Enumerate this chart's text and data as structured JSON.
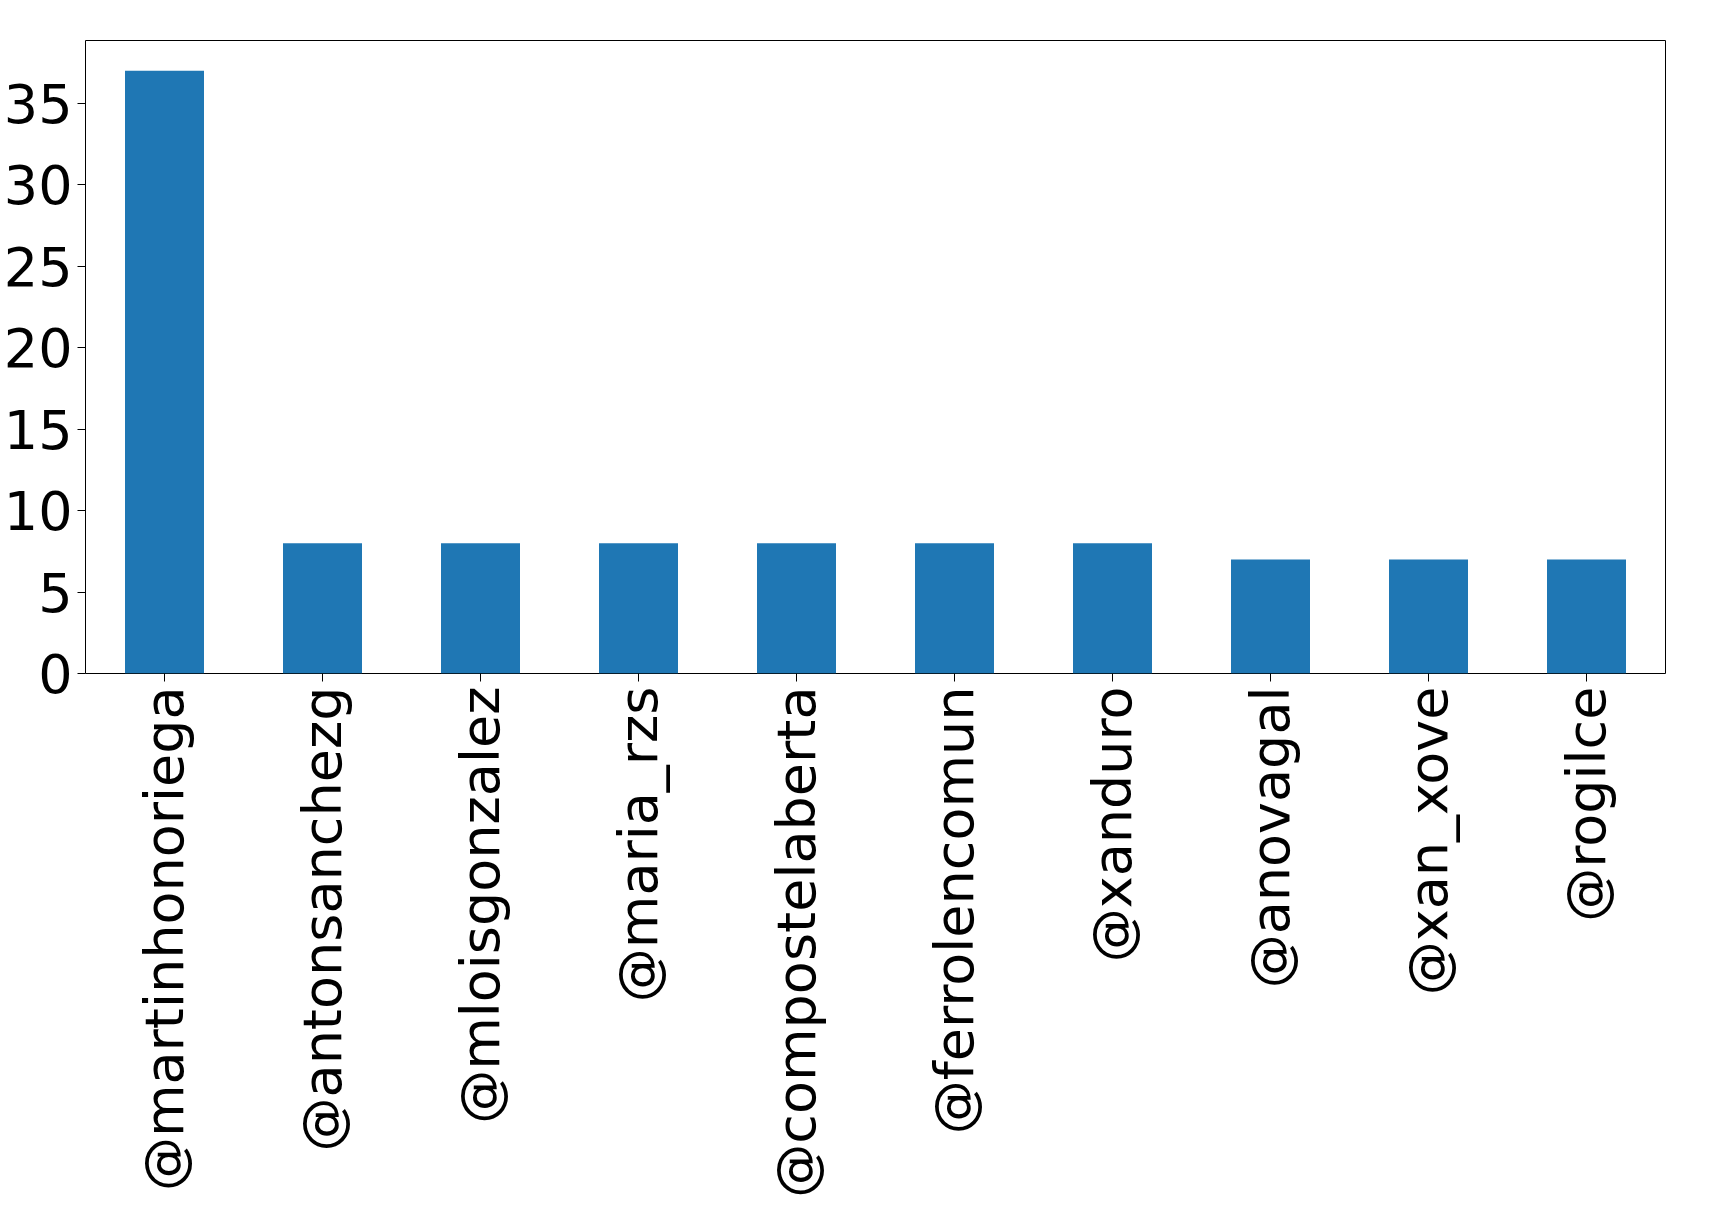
{
  "chart_data": {
    "type": "bar",
    "categories": [
      "@martinhonoriega",
      "@antonsanchezg",
      "@mloisgonzalez",
      "@maria_rzs",
      "@compostelaberta",
      "@ferrolencomun",
      "@xanduro",
      "@anovagal",
      "@xan_xove",
      "@rogilce"
    ],
    "values": [
      37,
      8,
      8,
      8,
      8,
      8,
      8,
      7,
      7,
      7
    ],
    "color": "#1f77b4",
    "ylim": [
      0,
      38.85
    ],
    "yticks": [
      0,
      5,
      10,
      15,
      20,
      25,
      30,
      35
    ],
    "grid": false
  }
}
